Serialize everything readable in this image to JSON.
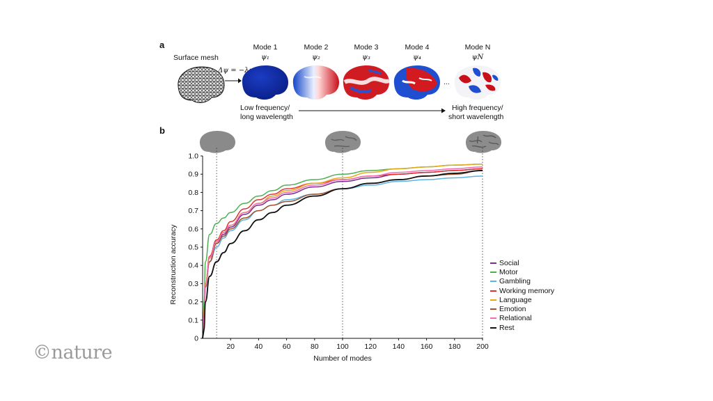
{
  "panel_a": {
    "letter": "a",
    "surface_label": "Surface mesh",
    "equation": "Δψ = −λψ",
    "modes": [
      {
        "title": "Mode 1",
        "symbol": "ψ₁"
      },
      {
        "title": "Mode 2",
        "symbol": "ψ₂"
      },
      {
        "title": "Mode 3",
        "symbol": "ψ₃"
      },
      {
        "title": "Mode 4",
        "symbol": "ψ₄"
      },
      {
        "title": "Mode N",
        "symbol": "ψN"
      }
    ],
    "ellipsis": "...",
    "low_freq": [
      "Low frequency/",
      "long wavelength"
    ],
    "high_freq": [
      "High frequency/",
      "short wavelength"
    ]
  },
  "panel_b": {
    "letter": "b"
  },
  "watermark": "©nature",
  "chart_data": {
    "type": "line",
    "xlabel": "Number of modes",
    "ylabel": "Reconstruction accuracy",
    "xlim": [
      0,
      200
    ],
    "ylim": [
      0,
      1.0
    ],
    "xticks": [
      20,
      40,
      60,
      80,
      100,
      120,
      140,
      160,
      180,
      200
    ],
    "yticks": [
      0,
      0.1,
      0.2,
      0.3,
      0.4,
      0.5,
      0.6,
      0.7,
      0.8,
      0.9,
      1.0
    ],
    "reference_lines_x": [
      10,
      100,
      200
    ],
    "x": [
      1,
      2,
      5,
      10,
      15,
      20,
      30,
      40,
      50,
      60,
      80,
      100,
      120,
      140,
      160,
      180,
      200
    ],
    "series": [
      {
        "name": "Social",
        "color": "#7b2d8e",
        "values": [
          0.12,
          0.28,
          0.42,
          0.52,
          0.57,
          0.61,
          0.68,
          0.73,
          0.76,
          0.79,
          0.83,
          0.86,
          0.88,
          0.9,
          0.91,
          0.92,
          0.93
        ]
      },
      {
        "name": "Motor",
        "color": "#4caf50",
        "values": [
          0.2,
          0.42,
          0.57,
          0.63,
          0.66,
          0.69,
          0.74,
          0.78,
          0.81,
          0.84,
          0.87,
          0.9,
          0.92,
          0.93,
          0.94,
          0.95,
          0.955
        ]
      },
      {
        "name": "Gambling",
        "color": "#5ab4e5",
        "values": [
          0.12,
          0.28,
          0.42,
          0.5,
          0.55,
          0.59,
          0.65,
          0.7,
          0.73,
          0.76,
          0.79,
          0.82,
          0.84,
          0.86,
          0.87,
          0.88,
          0.89
        ]
      },
      {
        "name": "Working memory",
        "color": "#e03131",
        "values": [
          0.12,
          0.3,
          0.45,
          0.54,
          0.59,
          0.64,
          0.71,
          0.76,
          0.79,
          0.82,
          0.85,
          0.87,
          0.89,
          0.9,
          0.91,
          0.92,
          0.93
        ]
      },
      {
        "name": "Language",
        "color": "#e6a817",
        "values": [
          0.15,
          0.3,
          0.44,
          0.53,
          0.58,
          0.62,
          0.69,
          0.74,
          0.78,
          0.81,
          0.85,
          0.88,
          0.91,
          0.93,
          0.94,
          0.95,
          0.955
        ]
      },
      {
        "name": "Emotion",
        "color": "#a0522d",
        "values": [
          0.12,
          0.28,
          0.42,
          0.52,
          0.56,
          0.6,
          0.66,
          0.7,
          0.73,
          0.75,
          0.79,
          0.82,
          0.85,
          0.87,
          0.89,
          0.9,
          0.92
        ]
      },
      {
        "name": "Relational",
        "color": "#f06fb0",
        "values": [
          0.12,
          0.29,
          0.44,
          0.53,
          0.58,
          0.62,
          0.69,
          0.74,
          0.77,
          0.8,
          0.84,
          0.87,
          0.89,
          0.91,
          0.92,
          0.93,
          0.94
        ]
      },
      {
        "name": "Rest",
        "color": "#111111",
        "values": [
          0.05,
          0.2,
          0.34,
          0.42,
          0.47,
          0.52,
          0.59,
          0.65,
          0.69,
          0.73,
          0.78,
          0.82,
          0.85,
          0.87,
          0.89,
          0.905,
          0.92
        ]
      }
    ]
  }
}
